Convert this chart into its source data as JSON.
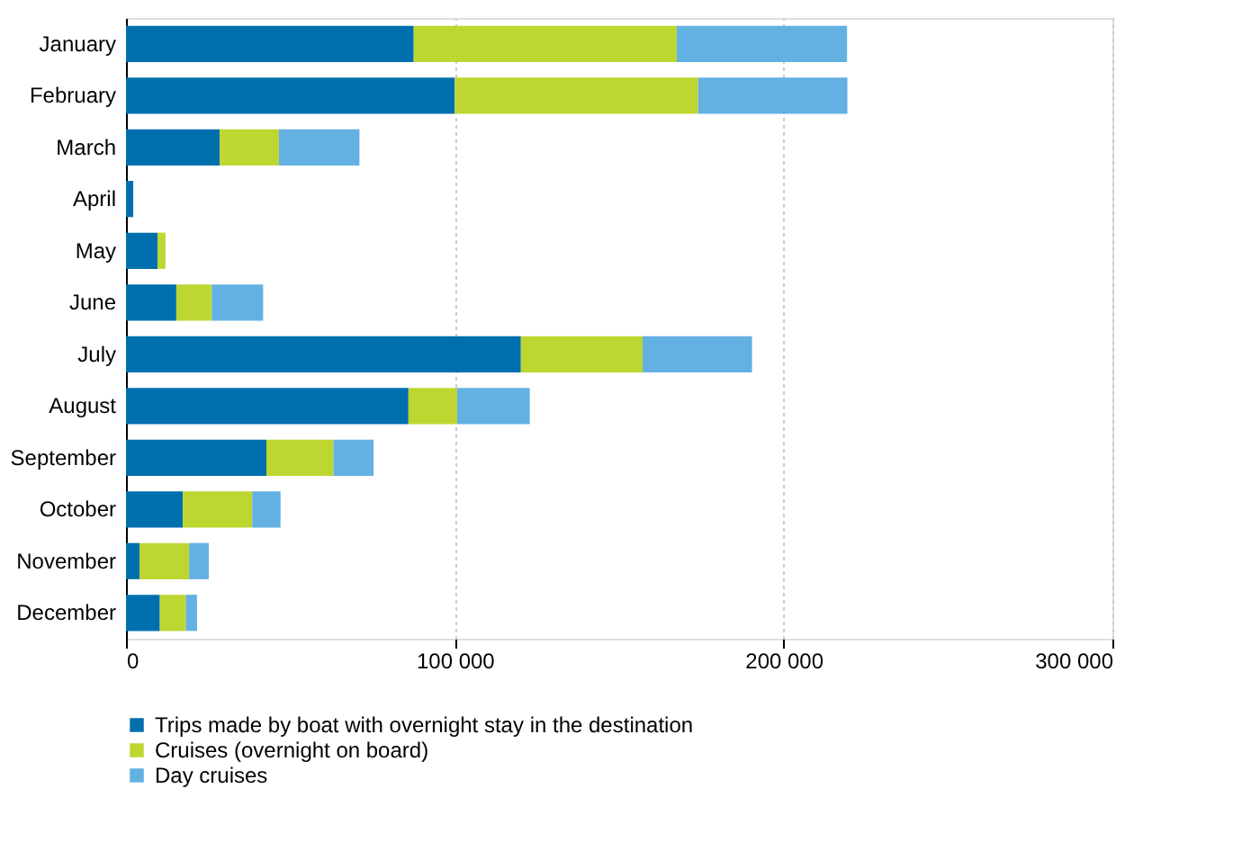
{
  "chart_data": {
    "type": "bar",
    "orientation": "horizontal",
    "stacked": true,
    "categories": [
      "January",
      "February",
      "March",
      "April",
      "May",
      "June",
      "July",
      "August",
      "September",
      "October",
      "November",
      "December"
    ],
    "series": [
      {
        "name": "Trips made by boat with overnight stay in the destination",
        "color": "#006fae",
        "values": [
          87500,
          100000,
          28500,
          2200,
          9600,
          15300,
          120100,
          85900,
          42700,
          17300,
          4100,
          10300
        ]
      },
      {
        "name": "Cruises (overnight on board)",
        "color": "#bed630",
        "values": [
          80000,
          74000,
          18000,
          0,
          2400,
          10800,
          37000,
          14800,
          20400,
          21100,
          15100,
          7900
        ]
      },
      {
        "name": "Day cruises",
        "color": "#63b0e3",
        "values": [
          51800,
          45400,
          24500,
          0,
          0,
          15600,
          33300,
          22100,
          12200,
          8600,
          6000,
          3400
        ]
      }
    ],
    "xlim": [
      0,
      300000
    ],
    "xticks": [
      0,
      {
        "value": 100000,
        "label": "100 000"
      },
      {
        "value": 200000,
        "label": "200 000"
      },
      {
        "value": 300000,
        "label": "300 000"
      }
    ],
    "grid": "x",
    "legend": "bottom"
  }
}
